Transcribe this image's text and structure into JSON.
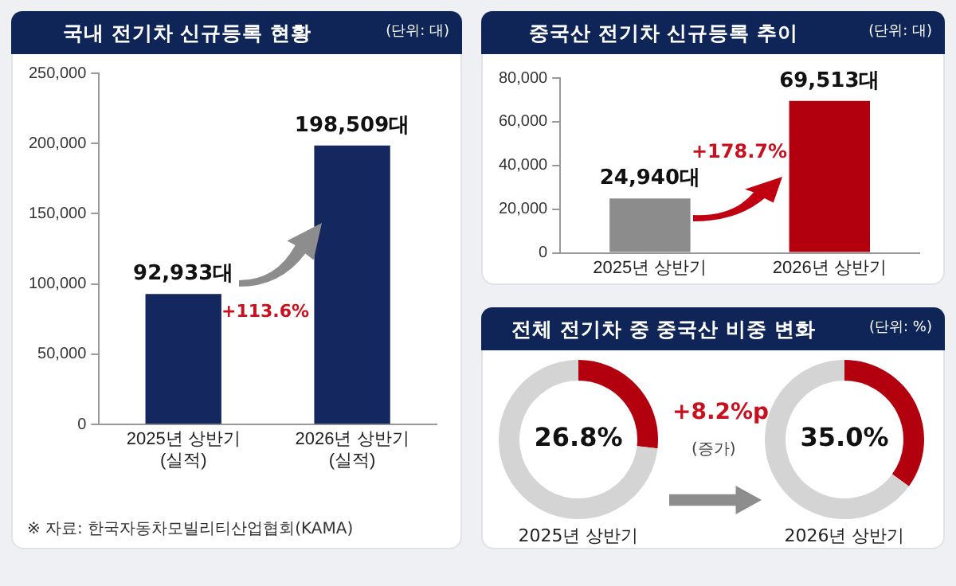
{
  "chart_data": [
    {
      "type": "bar",
      "title": "국내 전기차 신규등록 현황",
      "subtitle": "(단위: 대)",
      "categories": [
        "2025년 상반기\n(실적)",
        "2026년 상반기\n(실적)"
      ],
      "values": [
        92933,
        198509
      ],
      "color": "#14275e",
      "ylim": [
        0,
        250000
      ],
      "yticks": [
        0,
        {
          "value": 50000,
          "label": "50,000"
        },
        {
          "value": 100000,
          "label": "100,000"
        },
        {
          "value": 150000,
          "label": "150,000"
        },
        {
          "value": 200000,
          "label": "200,000"
        },
        {
          "value": 250000,
          "label": "250,000"
        }
      ],
      "grid": false,
      "value_labels": [
        "92,933대",
        "198,509대"
      ],
      "annotations": [
        "+113.6%",
        "※ 자료: 한국자동차모빌리티산업협회(KAMA)"
      ]
    },
    {
      "type": "bar",
      "title": "중국산 전기차 신규등록 추이",
      "subtitle": "(단위: 대)",
      "categories": [
        "2025년 상반기",
        "2026년 상반기"
      ],
      "values": [
        24940,
        69513
      ],
      "colors": [
        "#8c8c8c",
        "#b3000f"
      ],
      "ylim": [
        0,
        80000
      ],
      "yticks": [
        0,
        {
          "value": 20000,
          "label": "20,000"
        },
        {
          "value": 40000,
          "label": "40,000"
        },
        {
          "value": 60000,
          "label": "60,000"
        },
        {
          "value": 80000,
          "label": "80,000"
        }
      ],
      "grid": false,
      "value_labels": [
        "24,940대",
        "69,513대"
      ],
      "annotations": [
        "+178.7%"
      ]
    },
    {
      "type": "donut",
      "title": "전체 전기차 중 중국산 비중 변화",
      "categories": [
        null,
        null
      ],
      "values": [
        26.8,
        73.2
      ],
      "colors": [
        "#b3000f",
        "#d4d4d4"
      ],
      "value_labels": [
        "26.8%",
        null
      ],
      "xlabel": "2025년 상반기",
      "annotations": [
        "+8.2%p",
        "(증가)"
      ]
    },
    {
      "type": "donut",
      "subtitle": "(단위: %)",
      "categories": [
        null,
        null
      ],
      "values": [
        35.0,
        65.0
      ],
      "colors": [
        "#b3000f",
        "#d4d4d4"
      ],
      "value_labels": [
        "35.0%",
        null
      ],
      "xlabel": "2026년 상반기"
    }
  ]
}
